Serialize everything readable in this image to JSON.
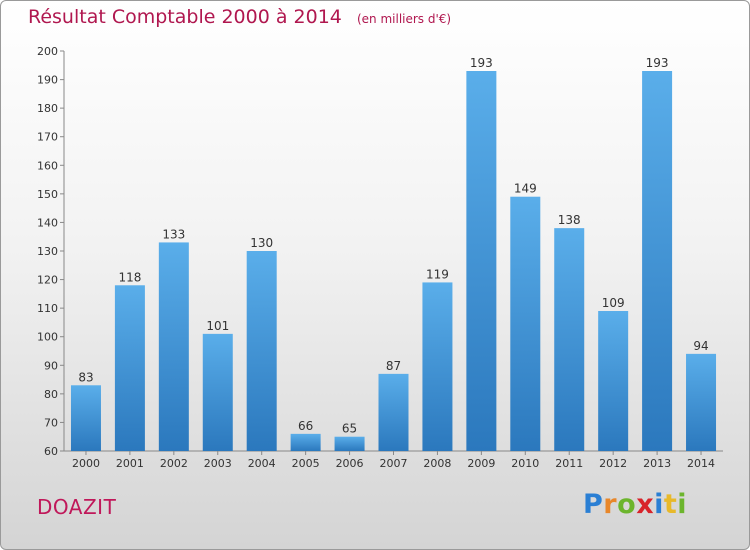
{
  "header": {
    "title": "Résultat Comptable 2000 à 2014",
    "subtitle": "(en milliers d'€)"
  },
  "footer": {
    "commune": "DOAZIT",
    "logo_text": "Proxiti",
    "logo_letters": [
      "P",
      "r",
      "o",
      "x",
      "i",
      "t",
      "i"
    ],
    "logo_colors": [
      "#2a7fd4",
      "#e8872a",
      "#6cb52d",
      "#d8232a",
      "#2a7fd4",
      "#e8b92a",
      "#6cb52d"
    ]
  },
  "chart_data": {
    "type": "bar",
    "title": "Résultat Comptable 2000 à 2014",
    "subtitle": "(en milliers d'€)",
    "categories": [
      "2000",
      "2001",
      "2002",
      "2003",
      "2004",
      "2005",
      "2006",
      "2007",
      "2008",
      "2009",
      "2010",
      "2011",
      "2012",
      "2013",
      "2014"
    ],
    "values": [
      83,
      118,
      133,
      101,
      130,
      66,
      65,
      87,
      119,
      193,
      149,
      138,
      109,
      193,
      94
    ],
    "ylim": [
      60,
      200
    ],
    "yticks": [
      60,
      70,
      80,
      90,
      100,
      110,
      120,
      130,
      140,
      150,
      160,
      170,
      180,
      190,
      200
    ],
    "grid": false,
    "bar_color": "#4a9ee0"
  }
}
